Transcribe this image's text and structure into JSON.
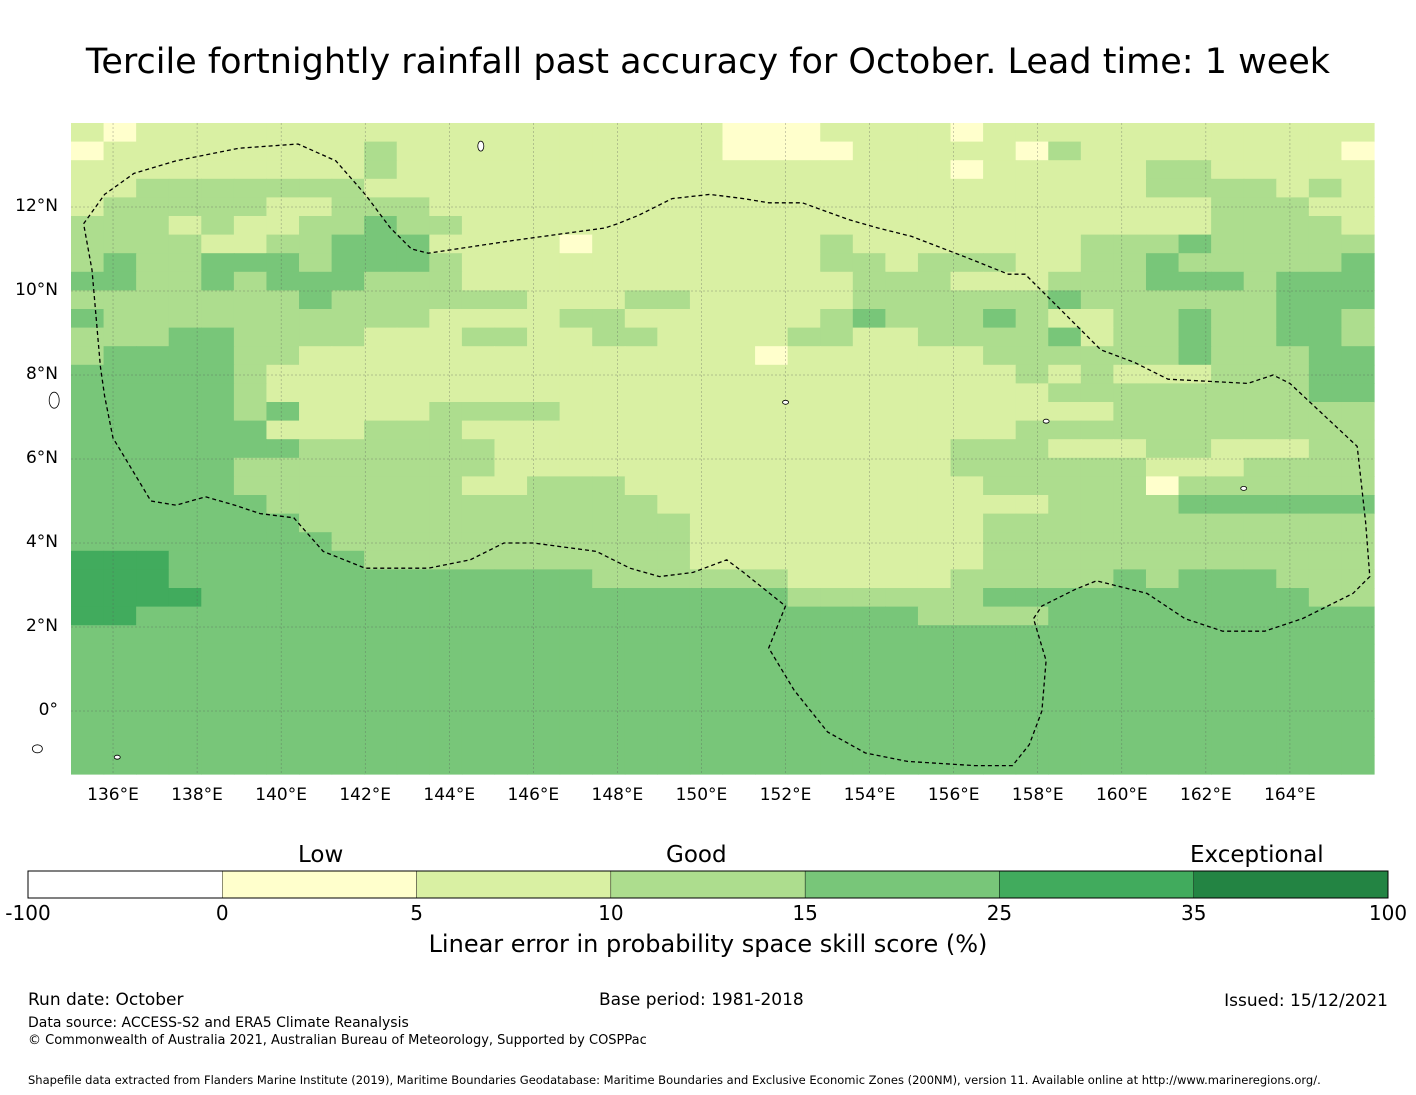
{
  "title": "Tercile fortnightly rainfall past accuracy for October. Lead time: 1 week",
  "axes": {
    "lon_labels": [
      "136°E",
      "138°E",
      "140°E",
      "142°E",
      "144°E",
      "146°E",
      "148°E",
      "150°E",
      "152°E",
      "154°E",
      "156°E",
      "158°E",
      "160°E",
      "162°E",
      "164°E"
    ],
    "lat_labels": [
      "12°N",
      "10°N",
      "8°N",
      "6°N",
      "4°N",
      "2°N",
      "0°"
    ]
  },
  "colorbar": {
    "categories": [
      "Low",
      "Good",
      "Exceptional"
    ],
    "ticks": [
      "-100",
      "0",
      "5",
      "10",
      "15",
      "25",
      "35",
      "100"
    ],
    "colors": [
      "#ffffff",
      "#ffffcc",
      "#d9f0a3",
      "#addd8e",
      "#78c679",
      "#41ab5d",
      "#238443"
    ],
    "title": "Linear error in probability space skill score (%)"
  },
  "footer": {
    "run_date": "Run date: October",
    "base_period": "Base period: 1981-2018",
    "issued": "Issued: 15/12/2021",
    "data_source": "Data source: ACCESS-S2 and ERA5 Climate Reanalysis",
    "copyright": "© Commonwealth of Australia 2021, Australian Bureau of Meteorology, Supported by COSPPac",
    "shapefile": "Shapefile data extracted from Flanders Marine Institute (2019), Maritime Boundaries Geodatabase: Maritime Boundaries and Exclusive Economic Zones (200NM), version 11. Available online at http://www.marineregions.org/."
  },
  "chart_data": {
    "type": "heatmap",
    "title": "Tercile fortnightly rainfall past accuracy for October. Lead time: 1 week",
    "variable": "LEPS skill score (%)",
    "lon_range": [
      135,
      166
    ],
    "lat_range": [
      -1.5,
      14
    ],
    "cell_size_deg": [
      0.833,
      0.556
    ],
    "class_bounds": [
      -100,
      0,
      5,
      10,
      15,
      25,
      35,
      100
    ],
    "grid_note": "rows ordered north to south; digit = colour class (1: 0-5, 2: 5-10, 3: 10-15, 4: 15-25, 5: 25-35, 6: 35-100)",
    "grid": [
      "2122222222222222222211122221222222222222",
      "1222222223222222222211112222213222222221",
      "2222222223222222222222222221222223322222",
      "2233333332222222222222222222222223333232",
      "2333332233322222222222222222222222233322",
      "3332322334332222222222222222222222233332",
      "3333223344422221222222232222222333433333",
      "3433444344432222222222233233322334333334",
      "4433434443332222222222223332223334443444",
      "3333333433333322233222223333334333333444",
      "4333333333322223322222234333432233433443",
      "3334433332223322332222332233334233433443",
      "3444433222222222222221222222333333433344",
      "4444432222222222222222222222232322233344",
      "4444432222222222222222222222223333333344",
      "4444434222233332222222222222222233333333",
      "4444442223332222222222222222233333333333",
      "4444444333333222222222222223332223322233",
      "4444433333333222222222222223333332223333",
      "4444433333332233322222222222333331333333",
      "4444443333333333332222222222223333444444",
      "4444444333333333333222222222333333333333",
      "4444444433333333333222222222333333333333",
      "5554444443333333333222222222333333333333",
      "5554444444444444333333222223333343444333",
      "5555444444444444444444333333444444444433",
      "5544444444444444444444444433334444444444",
      "4444444444444444444444444444444444444444",
      "4444444444444444444444444444444444444444",
      "4444444444444444444444444444444444444444",
      "4444444444444444444444444444444444444444",
      "4444444444444444444444444444444444444444",
      "4444444444444444444444444444444444444444",
      "4444444444444444444444444444444444444444",
      "4444444444444444444444444444444444444444"
    ],
    "eez_boundary_lonlat": [
      [
        135.3,
        11.6
      ],
      [
        135.8,
        12.3
      ],
      [
        136.5,
        12.8
      ],
      [
        137.5,
        13.1
      ],
      [
        139.0,
        13.4
      ],
      [
        140.4,
        13.5
      ],
      [
        141.3,
        13.1
      ],
      [
        142.0,
        12.3
      ],
      [
        142.6,
        11.5
      ],
      [
        143.1,
        11.0
      ],
      [
        143.5,
        10.9
      ],
      [
        145.5,
        11.2
      ],
      [
        147.7,
        11.5
      ],
      [
        148.0,
        11.6
      ],
      [
        148.5,
        11.8
      ],
      [
        149.3,
        12.2
      ],
      [
        150.2,
        12.3
      ],
      [
        151.0,
        12.2
      ],
      [
        151.6,
        12.1
      ],
      [
        152.4,
        12.1
      ],
      [
        153.5,
        11.7
      ],
      [
        154.2,
        11.5
      ],
      [
        155.0,
        11.3
      ],
      [
        156.3,
        10.8
      ],
      [
        157.3,
        10.4
      ],
      [
        157.7,
        10.4
      ],
      [
        158.0,
        10.1
      ],
      [
        158.3,
        9.8
      ],
      [
        159.5,
        8.6
      ],
      [
        160.3,
        8.3
      ],
      [
        161.1,
        7.9
      ],
      [
        163.0,
        7.8
      ],
      [
        163.6,
        8.0
      ],
      [
        164.0,
        7.8
      ],
      [
        165.6,
        6.3
      ],
      [
        165.8,
        4.5
      ],
      [
        165.9,
        3.2
      ],
      [
        165.5,
        2.8
      ],
      [
        164.3,
        2.2
      ],
      [
        163.4,
        1.9
      ],
      [
        162.4,
        1.9
      ],
      [
        161.5,
        2.2
      ],
      [
        160.6,
        2.8
      ],
      [
        159.4,
        3.1
      ],
      [
        158.9,
        2.9
      ],
      [
        158.1,
        2.5
      ],
      [
        157.9,
        2.2
      ],
      [
        158.2,
        1.2
      ],
      [
        158.1,
        0.0
      ],
      [
        157.8,
        -0.8
      ],
      [
        157.4,
        -1.3
      ],
      [
        156.5,
        -1.3
      ],
      [
        154.9,
        -1.2
      ],
      [
        153.9,
        -1.0
      ],
      [
        153.0,
        -0.5
      ],
      [
        152.2,
        0.5
      ],
      [
        151.6,
        1.5
      ],
      [
        152.0,
        2.5
      ],
      [
        151.0,
        3.3
      ],
      [
        150.6,
        3.6
      ],
      [
        149.8,
        3.3
      ],
      [
        149.0,
        3.2
      ],
      [
        148.3,
        3.4
      ],
      [
        147.5,
        3.8
      ],
      [
        146.0,
        4.0
      ],
      [
        145.3,
        4.0
      ],
      [
        144.5,
        3.6
      ],
      [
        143.5,
        3.4
      ],
      [
        142.0,
        3.4
      ],
      [
        141.0,
        3.8
      ],
      [
        140.3,
        4.6
      ],
      [
        139.5,
        4.7
      ],
      [
        138.9,
        4.9
      ],
      [
        138.2,
        5.1
      ],
      [
        137.5,
        4.9
      ],
      [
        136.9,
        5.0
      ],
      [
        136.0,
        6.5
      ],
      [
        135.8,
        7.5
      ],
      [
        135.7,
        8.2
      ],
      [
        135.5,
        10.5
      ],
      [
        135.3,
        11.6
      ]
    ]
  }
}
